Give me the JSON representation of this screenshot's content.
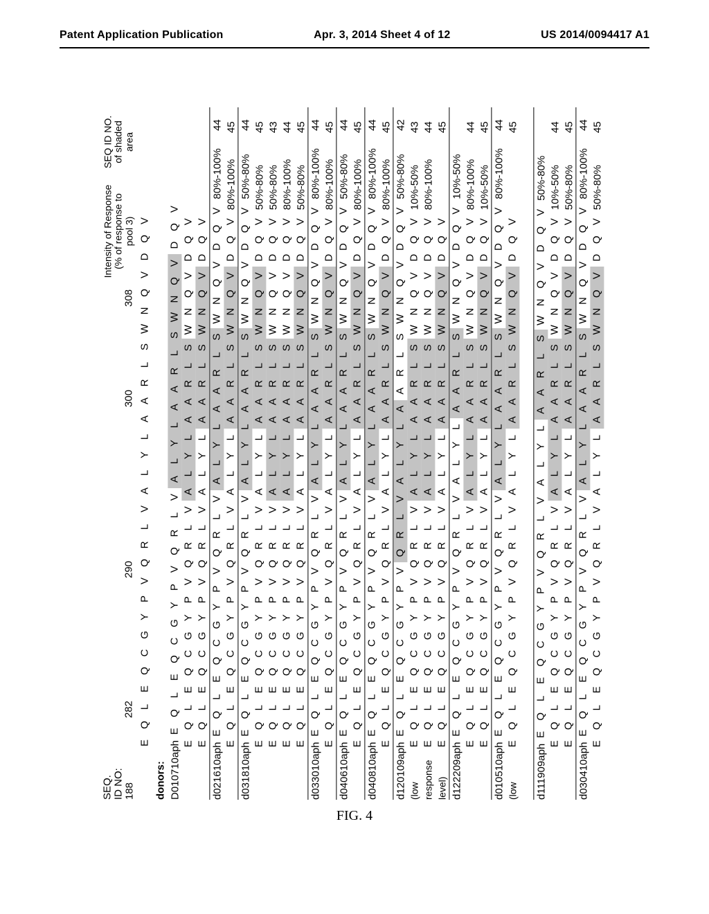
{
  "header": {
    "left": "Patent Application Publication",
    "mid": "Apr. 3, 2014  Sheet 4 of 12",
    "right": "US 2014/0094417 A1"
  },
  "figure_caption": "FIG. 4",
  "positions_label": {
    "seq": "SEQ.",
    "idno": "ID NO:",
    "num": "188"
  },
  "positions": {
    "p282": "282",
    "p290": "290",
    "p300": "300",
    "p308": "308"
  },
  "col_intensity": {
    "l1": "Intensity of Response",
    "l2": "(% of response to",
    "l3": "pool 3)"
  },
  "col_shaded": {
    "l1": "SEQ ID NO.",
    "l2": "of shaded",
    "l3": "area"
  },
  "ref_residues": [
    "E",
    "Q",
    "L",
    "E",
    "Q",
    "C",
    "G",
    "Y",
    "P",
    "V",
    "Q",
    "R",
    "L",
    "V",
    "A",
    "L",
    "Y",
    "L",
    "A",
    "A",
    "R",
    "L",
    "S",
    "W",
    "N",
    "Q",
    "V",
    "D",
    "Q",
    "V"
  ],
  "highlight_MV": [
    14,
    15,
    16,
    17,
    18,
    19,
    20,
    21,
    22,
    23,
    24,
    25,
    26
  ],
  "highlight_M": [
    14,
    15,
    16,
    17,
    18,
    19,
    20,
    21,
    22
  ],
  "highlight_VT": [
    18,
    19,
    20,
    21,
    22,
    23,
    24,
    25,
    26
  ],
  "highlight_V": [
    18,
    19,
    20,
    21,
    22
  ],
  "highlight_MT": [
    14,
    15,
    16,
    17,
    18,
    19,
    20,
    21,
    22,
    23,
    24,
    25,
    26
  ],
  "highlight_M2": [
    14,
    15,
    16,
    17,
    18,
    19,
    20,
    21,
    22
  ],
  "highlight_8a": [
    10,
    11,
    12,
    13,
    14,
    15,
    16,
    17,
    18
  ],
  "highlight_8b": [
    14,
    15,
    16,
    17,
    18,
    19,
    20,
    21,
    22
  ],
  "highlight_colors": {
    "shaded": "#c3c3c3"
  },
  "donors_label": "donors:",
  "low_response_label": {
    "l1": "(low",
    "l2": "response",
    "l3": "level)"
  },
  "groups": [
    {
      "id": "D010710aph",
      "rows": [
        {
          "resp": "",
          "shade": "",
          "hl": "highlight_MV"
        },
        {
          "resp": "",
          "shade": "",
          "hl": "highlight_M"
        },
        {
          "resp": "",
          "shade": "",
          "hl": "highlight_VT"
        }
      ]
    },
    {
      "id": "d021610aph",
      "rows": [
        {
          "resp": "80%-100%",
          "shade": "44",
          "hl": "highlight_M"
        },
        {
          "resp": "80%-100%",
          "shade": "45",
          "hl": "highlight_VT"
        }
      ]
    },
    {
      "id": "d031810aph",
      "rows": [
        {
          "resp": "50%-80%",
          "shade": "44",
          "hl": "highlight_M"
        },
        {
          "resp": "50%-80%",
          "shade": "45",
          "hl": "highlight_VT"
        },
        {
          "resp": "50%-80%",
          "shade": "43",
          "hl": "highlight_M2"
        },
        {
          "resp": "80%-100%",
          "shade": "44",
          "hl": "highlight_M"
        },
        {
          "resp": "50%-80%",
          "shade": "45",
          "hl": "highlight_VT"
        }
      ]
    },
    {
      "id": "d033010aph",
      "rows": [
        {
          "resp": "80%-100%",
          "shade": "44",
          "hl": "highlight_M"
        },
        {
          "resp": "80%-100%",
          "shade": "45",
          "hl": "highlight_VT"
        }
      ]
    },
    {
      "id": "d040610aph",
      "rows": [
        {
          "resp": "50%-80%",
          "shade": "44",
          "hl": "highlight_M"
        },
        {
          "resp": "80%-100%",
          "shade": "45",
          "hl": "highlight_VT"
        }
      ]
    },
    {
      "id": "d040810aph",
      "rows": [
        {
          "resp": "80%-100%",
          "shade": "44",
          "hl": "highlight_M"
        },
        {
          "resp": "80%-100%",
          "shade": "45",
          "hl": "highlight_VT"
        }
      ]
    },
    {
      "id": "d120109aph",
      "low": true,
      "rows": [
        {
          "resp": "50%-80%",
          "shade": "42",
          "hl": "highlight_8a"
        },
        {
          "resp": "10%-50%",
          "shade": "43",
          "hl": "highlight_8b"
        },
        {
          "resp": "80%-100%",
          "shade": "44",
          "hl": "highlight_M"
        },
        {
          "resp": "",
          "shade": "45",
          "hl": "highlight_VT"
        }
      ]
    },
    {
      "id": "d122209aph",
      "rows": [
        {
          "resp": "10%-50%",
          "shade": "",
          "hl": "highlight_V"
        },
        {
          "resp": "80%-100%",
          "shade": "44",
          "hl": "highlight_M"
        },
        {
          "resp": "10%-50%",
          "shade": "45",
          "hl": "highlight_VT"
        }
      ]
    },
    {
      "id": "d010510aph",
      "low": true,
      "rows": [
        {
          "resp": "80%-100%",
          "shade": "44",
          "hl": "highlight_M"
        },
        {
          "resp": "",
          "shade": "45",
          "hl": "highlight_VT"
        }
      ]
    },
    {
      "id": "d111909aph",
      "gap_before": true,
      "rows": [
        {
          "resp": "50%-80%",
          "shade": "",
          "hl": "highlight_V"
        },
        {
          "resp": "10%-50%",
          "shade": "44",
          "hl": "highlight_M"
        },
        {
          "resp": "50%-80%",
          "shade": "45",
          "hl": "highlight_VT"
        }
      ]
    },
    {
      "id": "d030410aph",
      "rows": [
        {
          "resp": "80%-100%",
          "shade": "44",
          "hl": "highlight_M"
        },
        {
          "resp": "50%-80%",
          "shade": "45",
          "hl": "highlight_VT"
        }
      ]
    }
  ]
}
